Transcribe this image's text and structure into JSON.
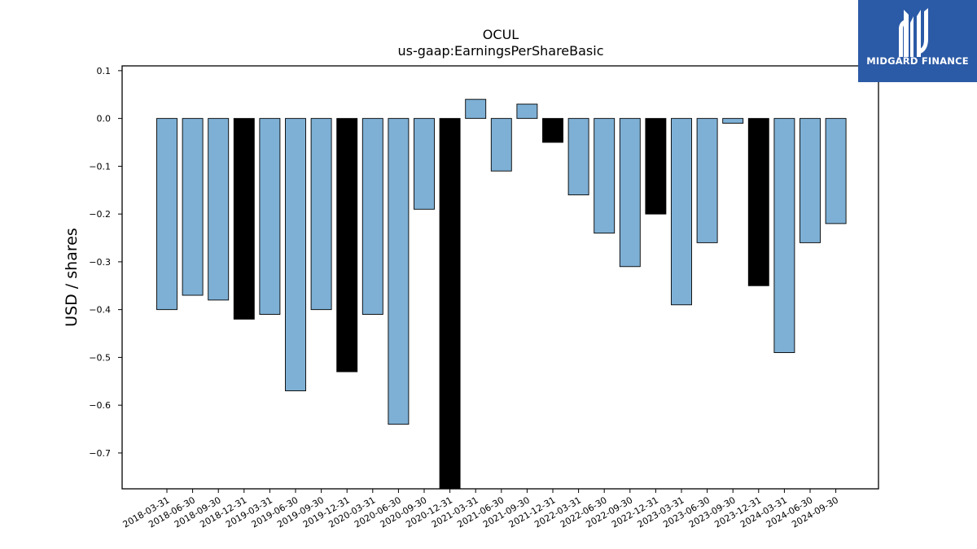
{
  "brand": {
    "name": "MIDGARD FINANCE",
    "color": "#2b5aa6",
    "logo_icon": "midgard-logo-icon"
  },
  "chart_data": {
    "type": "bar",
    "title": "OCUL",
    "subtitle": "us-gaap:EarningsPerShareBasic",
    "ylabel": "USD / shares",
    "xlabel": "",
    "ylim": [
      -0.775,
      0.11
    ],
    "yticks": [
      0.1,
      0.0,
      -0.1,
      -0.2,
      -0.3,
      -0.4,
      -0.5,
      -0.6,
      -0.7
    ],
    "ytick_labels": [
      "0.1",
      "0.0",
      "−0.1",
      "−0.2",
      "−0.3",
      "−0.4",
      "−0.5",
      "−0.6",
      "−0.7"
    ],
    "grid": false,
    "legend": "none",
    "colors": {
      "quarter": "#7eb0d5",
      "year_end": "#000000",
      "edge": "#000000"
    },
    "categories": [
      "2018-03-31",
      "2018-06-30",
      "2018-09-30",
      "2018-12-31",
      "2019-03-31",
      "2019-06-30",
      "2019-09-30",
      "2019-12-31",
      "2020-03-31",
      "2020-06-30",
      "2020-09-30",
      "2020-12-31",
      "2021-03-31",
      "2021-06-30",
      "2021-09-30",
      "2021-12-31",
      "2022-03-31",
      "2022-06-30",
      "2022-09-30",
      "2022-12-31",
      "2023-03-31",
      "2023-06-30",
      "2023-09-30",
      "2023-12-31",
      "2024-03-31",
      "2024-06-30",
      "2024-09-30"
    ],
    "values": [
      -0.4,
      -0.37,
      -0.38,
      -0.42,
      -0.41,
      -0.57,
      -0.4,
      -0.53,
      -0.41,
      -0.64,
      -0.19,
      -0.78,
      0.04,
      -0.11,
      0.03,
      -0.05,
      -0.16,
      -0.24,
      -0.31,
      -0.2,
      -0.39,
      -0.26,
      -0.01,
      -0.35,
      -0.49,
      -0.26,
      -0.22
    ],
    "highlight": [
      false,
      false,
      false,
      true,
      false,
      false,
      false,
      true,
      false,
      false,
      false,
      true,
      false,
      false,
      false,
      true,
      false,
      false,
      false,
      true,
      false,
      false,
      false,
      true,
      false,
      false,
      false
    ]
  }
}
